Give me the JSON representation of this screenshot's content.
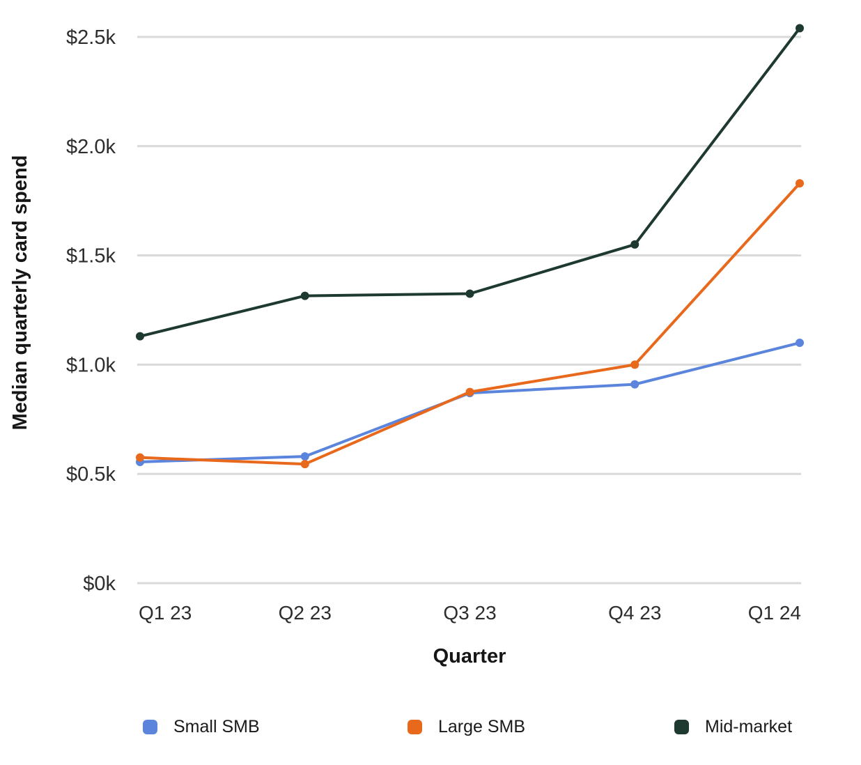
{
  "chart_data": {
    "type": "line",
    "title": "",
    "xlabel": "Quarter",
    "ylabel": "Median quarterly card spend",
    "categories": [
      "Q1 23",
      "Q2 23",
      "Q3 23",
      "Q4 23",
      "Q1 24"
    ],
    "series": [
      {
        "name": "Small SMB",
        "color": "#5B84DC",
        "values": [
          555,
          580,
          870,
          910,
          1100
        ]
      },
      {
        "name": "Large SMB",
        "color": "#E8681C",
        "values": [
          575,
          545,
          875,
          1000,
          1830
        ]
      },
      {
        "name": "Mid-market",
        "color": "#1E3A30",
        "values": [
          1130,
          1315,
          1325,
          1550,
          2540
        ]
      }
    ],
    "ylim": [
      0,
      2500
    ],
    "ytick_values": [
      0,
      500,
      1000,
      1500,
      2000,
      2500
    ],
    "ytick_labels": [
      "$0k",
      "$0.5k",
      "$1.0k",
      "$1.5k",
      "$2.0k",
      "$2.5k"
    ],
    "grid": "horizontal",
    "grid_color": "#D9D9D9",
    "legend_position": "bottom"
  }
}
